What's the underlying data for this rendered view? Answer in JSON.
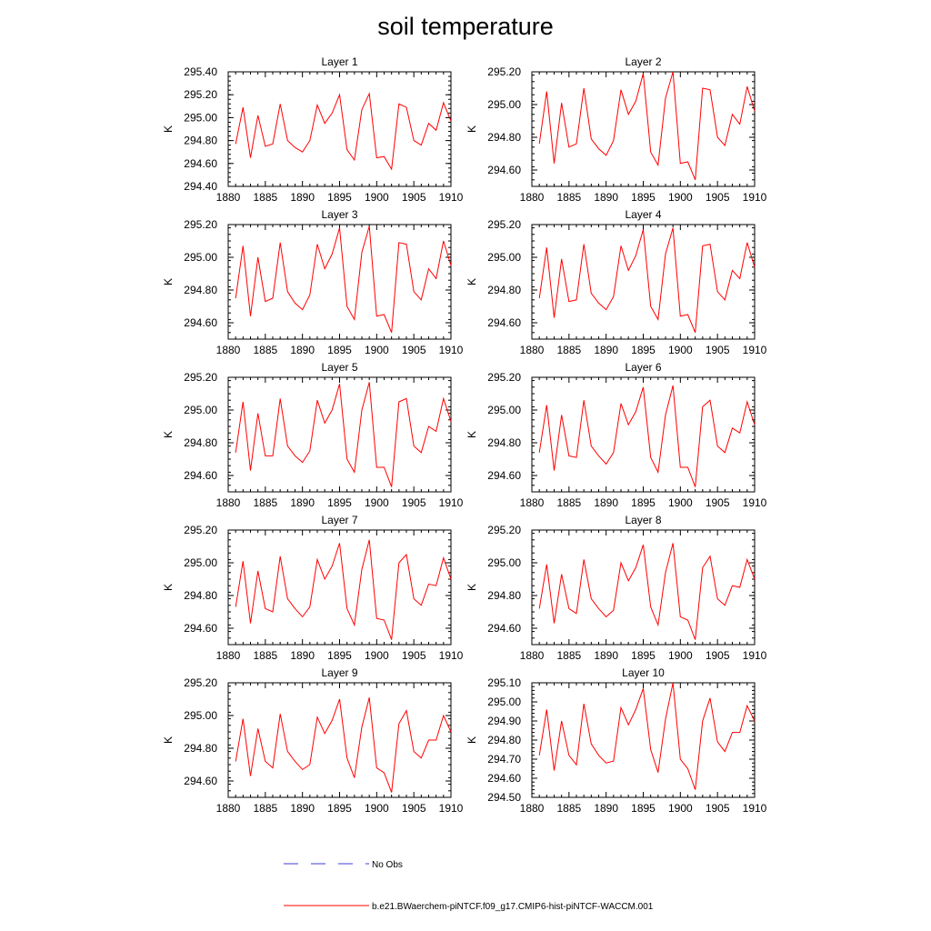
{
  "figure": {
    "title": "soil temperature"
  },
  "legend": {
    "obs_label": "No Obs",
    "model_label": "b.e21.BWaerchem-piNTCF.f09_g17.CMIP6-hist-piNTCF-WACCM.001",
    "obs_color": "#3b3bd8",
    "model_color": "#ff0000"
  },
  "chart_data": [
    {
      "type": "line",
      "title": "Layer 1",
      "ylabel": "K",
      "xlim": [
        1880,
        1910
      ],
      "ylim": [
        294.4,
        295.4
      ],
      "y_ticks": [
        294.4,
        294.6,
        294.8,
        295.0,
        295.2,
        295.4
      ],
      "x_ticks": [
        1880,
        1885,
        1890,
        1895,
        1900,
        1905,
        1910
      ],
      "x": [
        1881,
        1882,
        1883,
        1884,
        1885,
        1886,
        1887,
        1888,
        1889,
        1890,
        1891,
        1892,
        1893,
        1894,
        1895,
        1896,
        1897,
        1898,
        1899,
        1900,
        1901,
        1902,
        1903,
        1904,
        1905,
        1906,
        1907,
        1908,
        1909,
        1910
      ],
      "series": [
        {
          "name": "b.e21.BWaerchem-piNTCF.f09_g17.CMIP6-hist-piNTCF-WACCM.001",
          "values": [
            294.77,
            295.09,
            294.65,
            295.02,
            294.75,
            294.77,
            295.12,
            294.8,
            294.74,
            294.7,
            294.8,
            295.11,
            294.95,
            295.04,
            295.2,
            294.72,
            294.63,
            295.07,
            295.21,
            294.65,
            294.66,
            294.55,
            295.12,
            295.09,
            294.8,
            294.76,
            294.95,
            294.89,
            295.13,
            294.97
          ]
        }
      ]
    },
    {
      "type": "line",
      "title": "Layer 2",
      "ylabel": "K",
      "xlim": [
        1880,
        1910
      ],
      "ylim": [
        294.5,
        295.2
      ],
      "y_ticks": [
        294.6,
        294.8,
        295.0,
        295.2
      ],
      "x_ticks": [
        1880,
        1885,
        1890,
        1895,
        1900,
        1905,
        1910
      ],
      "x": [
        1881,
        1882,
        1883,
        1884,
        1885,
        1886,
        1887,
        1888,
        1889,
        1890,
        1891,
        1892,
        1893,
        1894,
        1895,
        1896,
        1897,
        1898,
        1899,
        1900,
        1901,
        1902,
        1903,
        1904,
        1905,
        1906,
        1907,
        1908,
        1909,
        1910
      ],
      "series": [
        {
          "name": "b.e21.BWaerchem-piNTCF.f09_g17.CMIP6-hist-piNTCF-WACCM.001",
          "values": [
            294.76,
            295.08,
            294.64,
            295.01,
            294.74,
            294.76,
            295.1,
            294.79,
            294.73,
            294.69,
            294.78,
            295.09,
            294.94,
            295.02,
            295.19,
            294.71,
            294.63,
            295.04,
            295.2,
            294.64,
            294.65,
            294.54,
            295.1,
            295.09,
            294.8,
            294.75,
            294.94,
            294.88,
            295.11,
            294.96
          ]
        }
      ]
    },
    {
      "type": "line",
      "title": "Layer 3",
      "ylabel": "K",
      "xlim": [
        1880,
        1910
      ],
      "ylim": [
        294.5,
        295.2
      ],
      "y_ticks": [
        294.6,
        294.8,
        295.0,
        295.2
      ],
      "x_ticks": [
        1880,
        1885,
        1890,
        1895,
        1900,
        1905,
        1910
      ],
      "x": [
        1881,
        1882,
        1883,
        1884,
        1885,
        1886,
        1887,
        1888,
        1889,
        1890,
        1891,
        1892,
        1893,
        1894,
        1895,
        1896,
        1897,
        1898,
        1899,
        1900,
        1901,
        1902,
        1903,
        1904,
        1905,
        1906,
        1907,
        1908,
        1909,
        1910
      ],
      "series": [
        {
          "name": "b.e21.BWaerchem-piNTCF.f09_g17.CMIP6-hist-piNTCF-WACCM.001",
          "values": [
            294.75,
            295.07,
            294.64,
            295.0,
            294.73,
            294.75,
            295.09,
            294.79,
            294.72,
            294.68,
            294.77,
            295.08,
            294.93,
            295.02,
            295.18,
            294.7,
            294.62,
            295.03,
            295.19,
            294.64,
            294.65,
            294.54,
            295.09,
            295.08,
            294.79,
            294.74,
            294.93,
            294.87,
            295.1,
            294.95
          ]
        }
      ]
    },
    {
      "type": "line",
      "title": "Layer 4",
      "ylabel": "K",
      "xlim": [
        1880,
        1910
      ],
      "ylim": [
        294.5,
        295.2
      ],
      "y_ticks": [
        294.6,
        294.8,
        295.0,
        295.2
      ],
      "x_ticks": [
        1880,
        1885,
        1890,
        1895,
        1900,
        1905,
        1910
      ],
      "x": [
        1881,
        1882,
        1883,
        1884,
        1885,
        1886,
        1887,
        1888,
        1889,
        1890,
        1891,
        1892,
        1893,
        1894,
        1895,
        1896,
        1897,
        1898,
        1899,
        1900,
        1901,
        1902,
        1903,
        1904,
        1905,
        1906,
        1907,
        1908,
        1909,
        1910
      ],
      "series": [
        {
          "name": "b.e21.BWaerchem-piNTCF.f09_g17.CMIP6-hist-piNTCF-WACCM.001",
          "values": [
            294.75,
            295.06,
            294.63,
            294.99,
            294.73,
            294.74,
            295.08,
            294.78,
            294.72,
            294.68,
            294.76,
            295.07,
            294.92,
            295.01,
            295.17,
            294.7,
            294.62,
            295.02,
            295.18,
            294.64,
            294.65,
            294.54,
            295.07,
            295.08,
            294.79,
            294.74,
            294.92,
            294.87,
            295.09,
            294.94
          ]
        }
      ]
    },
    {
      "type": "line",
      "title": "Layer 5",
      "ylabel": "K",
      "xlim": [
        1880,
        1910
      ],
      "ylim": [
        294.5,
        295.2
      ],
      "y_ticks": [
        294.6,
        294.8,
        295.0,
        295.2
      ],
      "x_ticks": [
        1880,
        1885,
        1890,
        1895,
        1900,
        1905,
        1910
      ],
      "x": [
        1881,
        1882,
        1883,
        1884,
        1885,
        1886,
        1887,
        1888,
        1889,
        1890,
        1891,
        1892,
        1893,
        1894,
        1895,
        1896,
        1897,
        1898,
        1899,
        1900,
        1901,
        1902,
        1903,
        1904,
        1905,
        1906,
        1907,
        1908,
        1909,
        1910
      ],
      "series": [
        {
          "name": "b.e21.BWaerchem-piNTCF.f09_g17.CMIP6-hist-piNTCF-WACCM.001",
          "values": [
            294.74,
            295.05,
            294.63,
            294.98,
            294.72,
            294.72,
            295.07,
            294.78,
            294.72,
            294.68,
            294.75,
            295.06,
            294.92,
            295.0,
            295.16,
            294.7,
            294.62,
            295.0,
            295.17,
            294.65,
            294.65,
            294.53,
            295.05,
            295.07,
            294.78,
            294.74,
            294.9,
            294.87,
            295.07,
            294.93
          ]
        }
      ]
    },
    {
      "type": "line",
      "title": "Layer 6",
      "ylabel": "K",
      "xlim": [
        1880,
        1910
      ],
      "ylim": [
        294.5,
        295.2
      ],
      "y_ticks": [
        294.6,
        294.8,
        295.0,
        295.2
      ],
      "x_ticks": [
        1880,
        1885,
        1890,
        1895,
        1900,
        1905,
        1910
      ],
      "x": [
        1881,
        1882,
        1883,
        1884,
        1885,
        1886,
        1887,
        1888,
        1889,
        1890,
        1891,
        1892,
        1893,
        1894,
        1895,
        1896,
        1897,
        1898,
        1899,
        1900,
        1901,
        1902,
        1903,
        1904,
        1905,
        1906,
        1907,
        1908,
        1909,
        1910
      ],
      "series": [
        {
          "name": "b.e21.BWaerchem-piNTCF.f09_g17.CMIP6-hist-piNTCF-WACCM.001",
          "values": [
            294.74,
            295.03,
            294.63,
            294.97,
            294.72,
            294.71,
            295.06,
            294.78,
            294.72,
            294.67,
            294.74,
            295.04,
            294.91,
            294.99,
            295.14,
            294.71,
            294.62,
            294.97,
            295.15,
            294.65,
            294.65,
            294.53,
            295.02,
            295.06,
            294.78,
            294.74,
            294.89,
            294.86,
            295.05,
            294.91
          ]
        }
      ]
    },
    {
      "type": "line",
      "title": "Layer 7",
      "ylabel": "K",
      "xlim": [
        1880,
        1910
      ],
      "ylim": [
        294.5,
        295.2
      ],
      "y_ticks": [
        294.6,
        294.8,
        295.0,
        295.2
      ],
      "x_ticks": [
        1880,
        1885,
        1890,
        1895,
        1900,
        1905,
        1910
      ],
      "x": [
        1881,
        1882,
        1883,
        1884,
        1885,
        1886,
        1887,
        1888,
        1889,
        1890,
        1891,
        1892,
        1893,
        1894,
        1895,
        1896,
        1897,
        1898,
        1899,
        1900,
        1901,
        1902,
        1903,
        1904,
        1905,
        1906,
        1907,
        1908,
        1909,
        1910
      ],
      "series": [
        {
          "name": "b.e21.BWaerchem-piNTCF.f09_g17.CMIP6-hist-piNTCF-WACCM.001",
          "values": [
            294.73,
            295.01,
            294.63,
            294.95,
            294.72,
            294.7,
            295.04,
            294.78,
            294.72,
            294.67,
            294.73,
            295.02,
            294.9,
            294.98,
            295.12,
            294.72,
            294.62,
            294.96,
            295.14,
            294.66,
            294.65,
            294.53,
            295.0,
            295.05,
            294.78,
            294.74,
            294.87,
            294.86,
            295.03,
            294.9
          ]
        }
      ]
    },
    {
      "type": "line",
      "title": "Layer 8",
      "ylabel": "K",
      "xlim": [
        1880,
        1910
      ],
      "ylim": [
        294.5,
        295.2
      ],
      "y_ticks": [
        294.6,
        294.8,
        295.0,
        295.2
      ],
      "x_ticks": [
        1880,
        1885,
        1890,
        1895,
        1900,
        1905,
        1910
      ],
      "x": [
        1881,
        1882,
        1883,
        1884,
        1885,
        1886,
        1887,
        1888,
        1889,
        1890,
        1891,
        1892,
        1893,
        1894,
        1895,
        1896,
        1897,
        1898,
        1899,
        1900,
        1901,
        1902,
        1903,
        1904,
        1905,
        1906,
        1907,
        1908,
        1909,
        1910
      ],
      "series": [
        {
          "name": "b.e21.BWaerchem-piNTCF.f09_g17.CMIP6-hist-piNTCF-WACCM.001",
          "values": [
            294.72,
            294.99,
            294.63,
            294.93,
            294.72,
            294.69,
            295.02,
            294.78,
            294.72,
            294.67,
            294.71,
            295.0,
            294.89,
            294.97,
            295.11,
            294.73,
            294.62,
            294.94,
            295.12,
            294.67,
            294.65,
            294.53,
            294.97,
            295.04,
            294.78,
            294.74,
            294.86,
            294.85,
            295.02,
            294.9
          ]
        }
      ]
    },
    {
      "type": "line",
      "title": "Layer 9",
      "ylabel": "K",
      "xlim": [
        1880,
        1910
      ],
      "ylim": [
        294.5,
        295.2
      ],
      "y_ticks": [
        294.6,
        294.8,
        295.0,
        295.2
      ],
      "x_ticks": [
        1880,
        1885,
        1890,
        1895,
        1900,
        1905,
        1910
      ],
      "x": [
        1881,
        1882,
        1883,
        1884,
        1885,
        1886,
        1887,
        1888,
        1889,
        1890,
        1891,
        1892,
        1893,
        1894,
        1895,
        1896,
        1897,
        1898,
        1899,
        1900,
        1901,
        1902,
        1903,
        1904,
        1905,
        1906,
        1907,
        1908,
        1909,
        1910
      ],
      "series": [
        {
          "name": "b.e21.BWaerchem-piNTCF.f09_g17.CMIP6-hist-piNTCF-WACCM.001",
          "values": [
            294.72,
            294.98,
            294.63,
            294.92,
            294.72,
            294.68,
            295.01,
            294.78,
            294.72,
            294.67,
            294.7,
            294.99,
            294.89,
            294.97,
            295.1,
            294.74,
            294.62,
            294.93,
            295.11,
            294.68,
            294.65,
            294.53,
            294.95,
            295.03,
            294.78,
            294.74,
            294.85,
            294.85,
            295.0,
            294.9
          ]
        }
      ]
    },
    {
      "type": "line",
      "title": "Layer 10",
      "ylabel": "K",
      "xlim": [
        1880,
        1910
      ],
      "ylim": [
        294.5,
        295.1
      ],
      "y_ticks": [
        294.5,
        294.6,
        294.7,
        294.8,
        294.9,
        295.0,
        295.1
      ],
      "x_ticks": [
        1880,
        1885,
        1890,
        1895,
        1900,
        1905,
        1910
      ],
      "x": [
        1881,
        1882,
        1883,
        1884,
        1885,
        1886,
        1887,
        1888,
        1889,
        1890,
        1891,
        1892,
        1893,
        1894,
        1895,
        1896,
        1897,
        1898,
        1899,
        1900,
        1901,
        1902,
        1903,
        1904,
        1905,
        1906,
        1907,
        1908,
        1909,
        1910
      ],
      "series": [
        {
          "name": "b.e21.BWaerchem-piNTCF.f09_g17.CMIP6-hist-piNTCF-WACCM.001",
          "values": [
            294.72,
            294.96,
            294.64,
            294.9,
            294.72,
            294.67,
            294.99,
            294.78,
            294.72,
            294.68,
            294.69,
            294.97,
            294.88,
            294.96,
            295.07,
            294.75,
            294.63,
            294.91,
            295.1,
            294.7,
            294.65,
            294.54,
            294.9,
            295.02,
            294.79,
            294.74,
            294.84,
            294.84,
            294.98,
            294.9
          ]
        }
      ]
    }
  ]
}
